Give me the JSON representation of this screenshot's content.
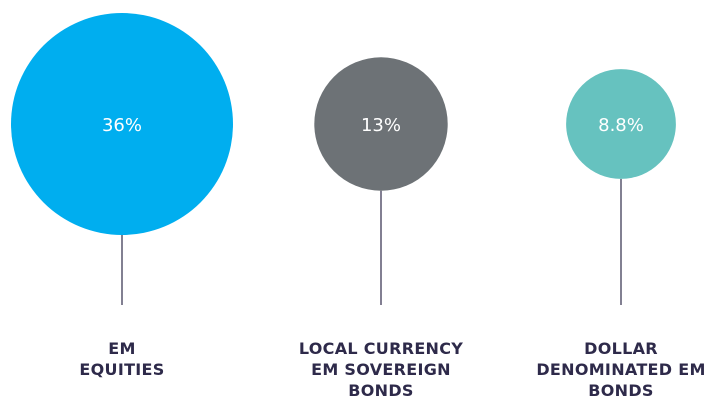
{
  "chart_data": {
    "type": "bubble",
    "categories": [
      "EM\nEQUITIES",
      "LOCAL CURRENCY\nEM SOVEREIGN\nBONDS",
      "DOLLAR\nDENOMINATED EM\nBONDS"
    ],
    "values": [
      36,
      13,
      8.8
    ],
    "value_labels": [
      "36%",
      "13%",
      "8.8%"
    ],
    "colors": [
      "#00aeef",
      "#6d7276",
      "#66c2bf"
    ]
  }
}
